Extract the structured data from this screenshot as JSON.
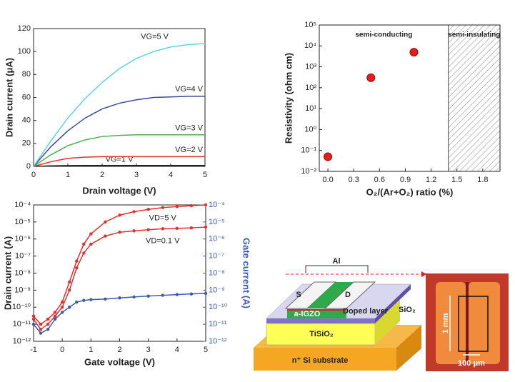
{
  "chart_data": [
    {
      "type": "line",
      "x_label": "Drain voltage (V)",
      "y_label": "Drain current (μA)",
      "x": [
        0,
        0.5,
        1,
        1.5,
        2,
        2.5,
        3,
        3.5,
        4,
        4.5,
        5
      ],
      "series": [
        {
          "name": "VG=1 V",
          "color": "#222222",
          "values": [
            0,
            0.5,
            0.7,
            0.8,
            0.8,
            0.8,
            0.8,
            0.8,
            0.8,
            0.8,
            0.8
          ]
        },
        {
          "name": "VG=2 V",
          "color": "#e03030",
          "values": [
            0,
            4,
            7,
            8,
            8.5,
            8.5,
            8.5,
            8.5,
            8.5,
            8.5,
            8.5
          ]
        },
        {
          "name": "VG=3 V",
          "color": "#4caf50",
          "values": [
            0,
            10,
            18,
            23,
            26,
            27,
            27.5,
            27.5,
            27.5,
            27.5,
            27.5
          ]
        },
        {
          "name": "VG=4 V",
          "color": "#3b4a9a",
          "values": [
            0,
            17,
            31,
            42,
            50,
            55,
            58,
            60,
            60.5,
            61,
            61
          ]
        },
        {
          "name": "VG=5 V",
          "color": "#5fd3e0",
          "values": [
            0,
            22,
            42,
            59,
            73,
            85,
            94,
            100,
            104,
            106,
            107
          ]
        }
      ],
      "xlim": [
        0,
        5
      ],
      "xticks": [
        0,
        1,
        2,
        3,
        4,
        5
      ],
      "ylim": [
        0,
        120
      ],
      "yticks": [
        0,
        20,
        40,
        60,
        80,
        100,
        120
      ],
      "log_y": false
    },
    {
      "type": "scatter",
      "x_label": "O₂/(Ar+O₂) ratio (%)",
      "y_label": "Resistivity (ohm cm)",
      "x": [
        0,
        0.5,
        1
      ],
      "series": [
        {
          "color": "#e02020",
          "values": [
            0.05,
            300,
            5000
          ]
        }
      ],
      "xlim": [
        -0.1,
        2.0
      ],
      "xticks": [
        {
          "value": 0,
          "label": "0.0"
        },
        0.3,
        0.6,
        0.9,
        1.2,
        1.5,
        1.8
      ],
      "ylim": [
        0.01,
        100000
      ],
      "log_y": true,
      "yticks": [
        {
          "value": 0.01,
          "label": "10⁻²"
        },
        {
          "value": 0.1,
          "label": "10⁻¹"
        },
        {
          "value": 1,
          "label": "10⁰"
        },
        {
          "value": 10,
          "label": "10¹"
        },
        {
          "value": 100,
          "label": "10²"
        },
        {
          "value": 1000,
          "label": "10³"
        },
        {
          "value": 10000,
          "label": "10⁴"
        },
        {
          "value": 100000,
          "label": "10⁵"
        }
      ],
      "regions": [
        {
          "label": "semi-conducting",
          "xrange": [
            -0.1,
            1.4
          ],
          "hatched": false
        },
        {
          "label": "semi-insulating",
          "xrange": [
            1.4,
            2.0
          ],
          "hatched": true
        }
      ]
    },
    {
      "type": "line",
      "x_label": "Gate voltage (V)",
      "y_label": "Drain current (A)",
      "y2_label": "Gate current (A)",
      "y2_color": "#3b5bab",
      "x": [
        -1,
        -0.75,
        -0.5,
        -0.25,
        0,
        0.25,
        0.5,
        0.75,
        1,
        1.5,
        2,
        2.5,
        3,
        3.5,
        4,
        4.5,
        5
      ],
      "series": [
        {
          "name": "VD=5 V",
          "color": "#e03030",
          "values": [
            3e-11,
            1e-11,
            2e-11,
            5e-11,
            2e-10,
            3e-09,
            5e-08,
            5e-07,
            2e-06,
            1e-05,
            2.5e-05,
            4e-05,
            5.5e-05,
            7e-05,
            8e-05,
            9e-05,
            0.0001
          ]
        },
        {
          "name": "VD=0.1 V",
          "color": "#e03030",
          "values": [
            2e-11,
            5e-12,
            1e-11,
            3e-11,
            1e-10,
            1e-09,
            2e-08,
            1.5e-07,
            5e-07,
            1.5e-06,
            2.5e-06,
            3e-06,
            3.5e-06,
            4e-06,
            4.2e-06,
            4.5e-06,
            5e-06
          ]
        },
        {
          "color": "#3b5bab",
          "axis": "y2",
          "values": [
            1e-11,
            3e-12,
            5e-12,
            2e-11,
            5e-11,
            1e-10,
            2e-10,
            2.5e-10,
            2.8e-10,
            3e-10,
            3.5e-10,
            4e-10,
            4.5e-10,
            5e-10,
            5.5e-10,
            6e-10,
            6.5e-10
          ]
        }
      ],
      "markers": true,
      "xlim": [
        -1,
        5
      ],
      "xticks": [
        -1,
        0,
        1,
        2,
        3,
        4,
        5
      ],
      "ylim": [
        1e-12,
        0.0001
      ],
      "log_y": true,
      "yticks": [
        {
          "value": 1e-12,
          "label": "10⁻¹²"
        },
        {
          "value": 1e-11,
          "label": "10⁻¹¹"
        },
        {
          "value": 1e-10,
          "label": "10⁻¹⁰"
        },
        {
          "value": 1e-09,
          "label": "10⁻⁹"
        },
        {
          "value": 1e-08,
          "label": "10⁻⁸"
        },
        {
          "value": 1e-07,
          "label": "10⁻⁷"
        },
        {
          "value": 1e-06,
          "label": "10⁻⁶"
        },
        {
          "value": 1e-05,
          "label": "10⁻⁵"
        },
        {
          "value": 0.0001,
          "label": "10⁻⁴"
        }
      ],
      "y2lim": [
        1e-12,
        0.0001
      ],
      "y2ticks": [
        {
          "value": 1e-12,
          "label": "10⁻¹²"
        },
        {
          "value": 1e-11,
          "label": "10⁻¹¹"
        },
        {
          "value": 1e-10,
          "label": "10⁻¹⁰"
        },
        {
          "value": 1e-09,
          "label": "10⁻⁹"
        },
        {
          "value": 1e-08,
          "label": "10⁻⁸"
        },
        {
          "value": 1e-07,
          "label": "10⁻⁷"
        },
        {
          "value": 1e-06,
          "label": "10⁻⁶"
        },
        {
          "value": 1e-05,
          "label": "10⁻⁵"
        },
        {
          "value": 0.0001,
          "label": "10⁻⁴"
        }
      ]
    }
  ],
  "diagram": {
    "labels": {
      "al": "Al",
      "s": "S",
      "d": "D",
      "igzo": "a-IGZO",
      "doped": "Doped layer",
      "sio2": "SiO₂",
      "tisio2": "TiSiO₂",
      "substrate": "n⁺ Si substrate"
    },
    "photo": {
      "length": "1 mm",
      "width": "100 μm"
    }
  }
}
